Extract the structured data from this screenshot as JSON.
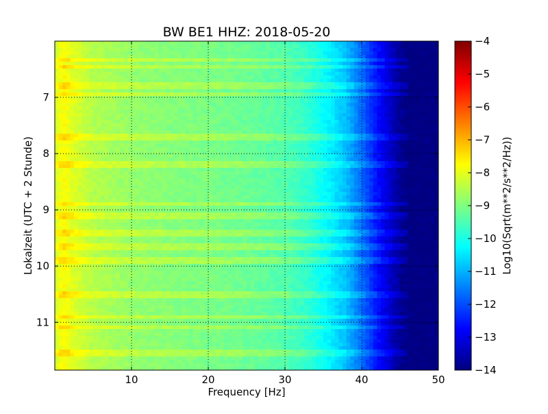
{
  "chart_data": {
    "type": "heatmap",
    "title": "BW BE1 HHZ: 2018-05-20",
    "xlabel": "Frequency [Hz]",
    "ylabel": "Lokalzeit (UTC + 2 Stunde)",
    "xlim": [
      0,
      50
    ],
    "ylim": [
      6.0,
      11.85
    ],
    "y_inverted": true,
    "x_ticks": [
      10,
      20,
      30,
      40,
      50
    ],
    "y_ticks": [
      7,
      8,
      9,
      10,
      11
    ],
    "x_tick_labels": [
      "10",
      "20",
      "30",
      "40",
      "50"
    ],
    "y_tick_labels": [
      "7",
      "8",
      "9",
      "10",
      "11"
    ],
    "grid": true,
    "colormap": "jet",
    "colorbar": {
      "label": "Log10(Sqrt(m**2/s**2/Hz))",
      "range": [
        -14,
        -4
      ],
      "ticks": [
        -4,
        -5,
        -6,
        -7,
        -8,
        -9,
        -10,
        -11,
        -12,
        -13,
        -14
      ],
      "tick_labels": [
        "−4",
        "−5",
        "−6",
        "−7",
        "−8",
        "−9",
        "−10",
        "−11",
        "−12",
        "−13",
        "−14"
      ]
    },
    "spectral_profile": {
      "frequency_hz": [
        0.5,
        1,
        2,
        5,
        10,
        15,
        20,
        25,
        30,
        33,
        36,
        38,
        40,
        42,
        44,
        45,
        46,
        50
      ],
      "log10_amplitude": [
        -8.1,
        -7.7,
        -8.0,
        -8.5,
        -8.8,
        -8.95,
        -9.05,
        -9.2,
        -9.45,
        -9.8,
        -10.4,
        -10.9,
        -11.7,
        -12.6,
        -13.4,
        -13.8,
        -14.0,
        -14.0
      ]
    },
    "noise_bands_hours": [
      6.35,
      6.45,
      6.8,
      6.95,
      7.7,
      8.2,
      8.9,
      9.1,
      9.4,
      9.65,
      9.9,
      10.5,
      10.9,
      11.1,
      11.55
    ]
  }
}
